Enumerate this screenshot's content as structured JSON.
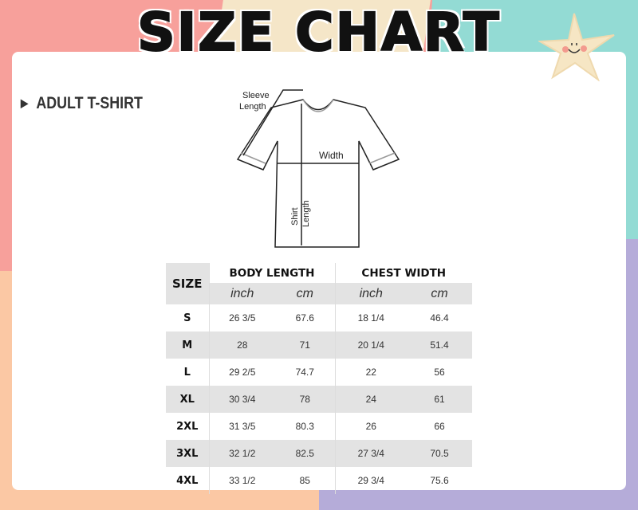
{
  "title": "SIZE CHART",
  "subtitle": "ADULT T-SHIRT",
  "diagram": {
    "sleeve": "Sleeve",
    "sleeve2": "Length",
    "width": "Width",
    "shirt": "Shirt",
    "shirt2": "Length"
  },
  "colors": {
    "pink": "#f7a09b",
    "cream": "#f5e6c8",
    "teal": "#93dbd4",
    "peach": "#fbc8a4",
    "lavender": "#b5acd9"
  },
  "table": {
    "size_header": "SIZE",
    "groups": [
      "BODY LENGTH",
      "CHEST WIDTH"
    ],
    "units": [
      "inch",
      "cm",
      "inch",
      "cm"
    ],
    "rows": [
      [
        "S",
        "26 3/5",
        "67.6",
        "18 1/4",
        "46.4"
      ],
      [
        "M",
        "28",
        "71",
        "20 1/4",
        "51.4"
      ],
      [
        "L",
        "29 2/5",
        "74.7",
        "22",
        "56"
      ],
      [
        "XL",
        "30 3/4",
        "78",
        "24",
        "61"
      ],
      [
        "2XL",
        "31 3/5",
        "80.3",
        "26",
        "66"
      ],
      [
        "3XL",
        "32 1/2",
        "82.5",
        "27 3/4",
        "70.5"
      ],
      [
        "4XL",
        "33 1/2",
        "85",
        "29 3/4",
        "75.6"
      ]
    ]
  }
}
